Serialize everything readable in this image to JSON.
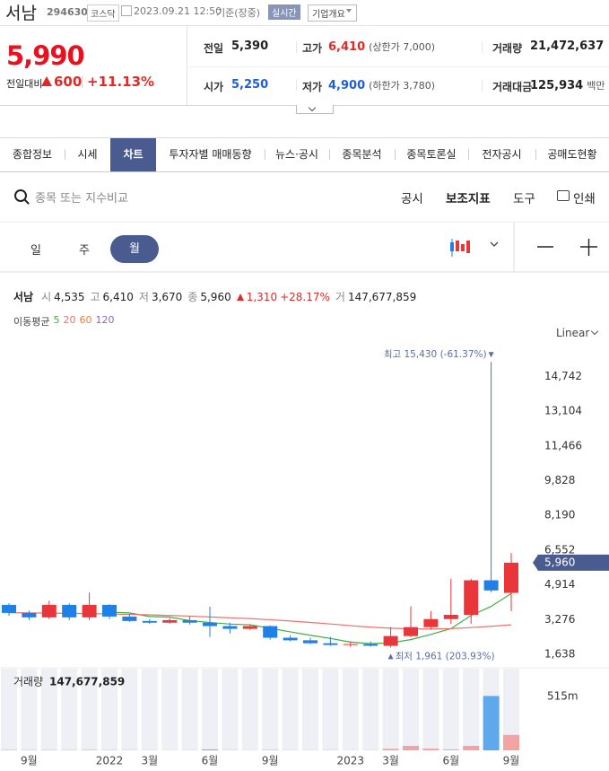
{
  "header": {
    "name": "서남",
    "code": "294630",
    "market": "코스닥",
    "datetime": "2023.09.21 12:50",
    "basis": "기준(장중)",
    "realtime": "실시간",
    "company": "기업개요"
  },
  "quote": {
    "price": "5,990",
    "change_label": "전일대비",
    "change": "600",
    "rate": "+11.13%",
    "stats": [
      {
        "label": "전일",
        "value": "5,390",
        "color": "#222"
      },
      {
        "label": "고가",
        "value": "6,410",
        "extra": "(상한가 7,000)",
        "color": "#e22926"
      },
      {
        "label": "거래량",
        "value": "21,472,637",
        "color": "#222"
      },
      {
        "label": "시가",
        "value": "5,250",
        "color": "#1f5fd6"
      },
      {
        "label": "저가",
        "value": "4,900",
        "extra": "(하한가 3,780)",
        "color": "#1f5fd6"
      },
      {
        "label": "거래대금",
        "value": "125,934",
        "extra": "백만",
        "color": "#222"
      }
    ]
  },
  "tabs": [
    {
      "label": "종합정보"
    },
    {
      "label": "시세"
    },
    {
      "label": "차트",
      "active": true
    },
    {
      "label": "투자자별 매매동향"
    },
    {
      "label": "뉴스·공시"
    },
    {
      "label": "종목분석"
    },
    {
      "label": "종목토론실"
    },
    {
      "label": "전자공시"
    },
    {
      "label": "공매도현황"
    }
  ],
  "search": {
    "placeholder": "종목 또는 지수비교",
    "tools": [
      "공시",
      "보조지표",
      "도구",
      "인쇄"
    ]
  },
  "periods": [
    {
      "label": "일"
    },
    {
      "label": "주"
    },
    {
      "label": "월",
      "active": true
    }
  ],
  "chart_data": {
    "type": "candlestick",
    "summary": {
      "name": "서남",
      "items": [
        {
          "label": "시",
          "value": "4,535"
        },
        {
          "label": "고",
          "value": "6,410"
        },
        {
          "label": "저",
          "value": "3,670"
        },
        {
          "label": "종",
          "value": "5,960"
        }
      ],
      "change": "1,310",
      "rate": "+28.17%",
      "volume_label": "거",
      "volume": "147,677,859"
    },
    "ma_title": "이동평균",
    "scale": "Linear",
    "categories": [
      null,
      "9월",
      null,
      null,
      null,
      "2022",
      null,
      "3월",
      null,
      null,
      "6월",
      null,
      null,
      "9월",
      null,
      null,
      null,
      "2023",
      null,
      "3월",
      null,
      null,
      "6월",
      null,
      null,
      "9월"
    ],
    "open": [
      3970,
      3590,
      3380,
      3970,
      3380,
      3970,
      3420,
      3210,
      3130,
      3250,
      3130,
      2970,
      2840,
      2970,
      2420,
      2300,
      2160,
      2080,
      2120,
      2040,
      2500,
      2920,
      3300,
      3500,
      5130,
      4535
    ],
    "high": [
      4050,
      3700,
      4170,
      4040,
      4550,
      4000,
      3550,
      3300,
      3340,
      3420,
      3880,
      3130,
      3040,
      3000,
      2540,
      2420,
      2460,
      2250,
      2250,
      2920,
      3900,
      3680,
      5200,
      5200,
      15430,
      6410
    ],
    "low": [
      3460,
      3250,
      3300,
      3250,
      3250,
      3300,
      3170,
      3080,
      3080,
      3040,
      2460,
      2620,
      2800,
      2330,
      2250,
      2120,
      2040,
      1990,
      2000,
      1961,
      2460,
      2800,
      3080,
      3080,
      4560,
      3670
    ],
    "close": [
      3590,
      3380,
      3970,
      3380,
      3970,
      3420,
      3210,
      3130,
      3250,
      3130,
      2970,
      2840,
      2970,
      2420,
      2300,
      2160,
      2080,
      2120,
      2040,
      2500,
      2920,
      3300,
      3500,
      5130,
      4650,
      5960
    ],
    "up_color": "#e8363a",
    "down_color": "#1f80e8",
    "ylim": [
      1088,
      16200
    ],
    "yticks": [
      {
        "value": 1638,
        "label": "1,638"
      },
      {
        "value": 3276,
        "label": "3,276"
      },
      {
        "value": 4914,
        "label": "4,914"
      },
      {
        "value": 6552,
        "label": "6,552"
      },
      {
        "value": 8190,
        "label": "8,190"
      },
      {
        "value": 9828,
        "label": "9,828"
      },
      {
        "value": 11466,
        "label": "11,466"
      },
      {
        "value": 13104,
        "label": "13,104"
      },
      {
        "value": 14742,
        "label": "14,742"
      }
    ],
    "last_label": "5,960",
    "high_label": "최고 15,430 (-61.37%)",
    "low_label": "최저 1,961 (203.93%)",
    "moving_averages": [
      {
        "name": "5",
        "color": "#3fae3f",
        "values": [
          null,
          null,
          null,
          null,
          null,
          3624,
          3590,
          3422,
          3396,
          3228,
          3138,
          3064,
          3032,
          2866,
          2700,
          2538,
          2386,
          2216,
          2140,
          2180,
          2332,
          2576,
          2852,
          3470,
          3900,
          4508
        ]
      },
      {
        "name": "20",
        "color": "#e8736a",
        "values": [
          3600,
          3590,
          3580,
          3570,
          3560,
          3540,
          3520,
          3500,
          3470,
          3440,
          3400,
          3360,
          3320,
          3270,
          3210,
          3140,
          3070,
          2990,
          2920,
          2870,
          2840,
          2830,
          2850,
          2900,
          2960,
          3030
        ]
      },
      {
        "name": "60",
        "color": "#f07d3a",
        "values": [
          null,
          null,
          null,
          null,
          null,
          null,
          null,
          null,
          null,
          null,
          null,
          null,
          null,
          null,
          null,
          null,
          null,
          null,
          null,
          null,
          null,
          null,
          null,
          null,
          null,
          null
        ]
      },
      {
        "name": "120",
        "color": "#8a63c9",
        "values": [
          null,
          null,
          null,
          null,
          null,
          null,
          null,
          null,
          null,
          null,
          null,
          null,
          null,
          null,
          null,
          null,
          null,
          null,
          null,
          null,
          null,
          null,
          null,
          null,
          null,
          null
        ]
      }
    ],
    "volume": {
      "title": "거래량",
      "label": "147,677,859",
      "values": [
        3000000,
        2000000,
        4000000,
        2000000,
        5000000,
        2000000,
        1500000,
        1000000,
        1000000,
        1000000,
        8000000,
        1500000,
        1000000,
        3000000,
        1000000,
        1000000,
        1500000,
        1000000,
        1000000,
        15000000,
        43000000,
        17000000,
        9000000,
        43000000,
        520000000,
        147677859
      ],
      "ylim": [
        0,
        781000000
      ],
      "yticks": [
        {
          "value": 515000000,
          "label": "515m"
        }
      ],
      "up_color": "#f4a3a3",
      "down_color": "#5ea9ec"
    }
  }
}
